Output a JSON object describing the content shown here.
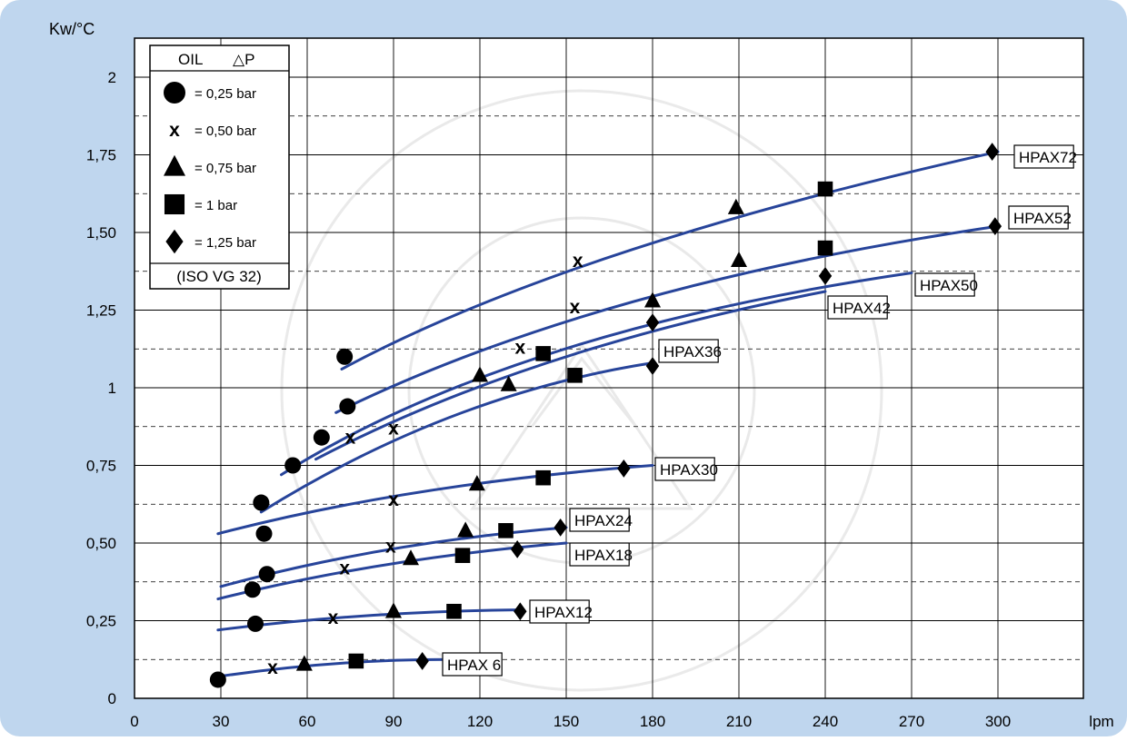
{
  "chart_data": {
    "type": "line",
    "ylabel": "Kw/°C",
    "xlabel": "lpm",
    "xlim": [
      0,
      320
    ],
    "ylim": [
      0,
      2.05
    ],
    "x_ticks": [
      0,
      30,
      60,
      90,
      120,
      150,
      180,
      210,
      240,
      270,
      300
    ],
    "y_ticks": [
      {
        "v": 0,
        "label": "0"
      },
      {
        "v": 0.25,
        "label": "0,25"
      },
      {
        "v": 0.5,
        "label": "0,50"
      },
      {
        "v": 0.75,
        "label": "0,75"
      },
      {
        "v": 1,
        "label": "1"
      },
      {
        "v": 1.25,
        "label": "1,25"
      },
      {
        "v": 1.5,
        "label": "1,50"
      },
      {
        "v": 1.75,
        "label": "1,75"
      },
      {
        "v": 2,
        "label": "2"
      }
    ],
    "grid": true,
    "legend": {
      "header_oil": "OIL",
      "header_dp": "△P",
      "items": [
        {
          "marker": "circle",
          "label": "= 0,25 bar"
        },
        {
          "marker": "x",
          "label": "= 0,50 bar"
        },
        {
          "marker": "triangle",
          "label": "= 0,75 bar"
        },
        {
          "marker": "square",
          "label": "= 1 bar"
        },
        {
          "marker": "diamond",
          "label": "= 1,25 bar"
        }
      ],
      "footer": "(ISO VG 32)",
      "placement": "top-left"
    },
    "series": [
      {
        "name": "HPAX72",
        "x": [
          73,
          154,
          209,
          240,
          298
        ],
        "y": [
          1.1,
          1.41,
          1.58,
          1.64,
          1.76
        ]
      },
      {
        "name": "HPAX52",
        "x": [
          74,
          153,
          210,
          240,
          299
        ],
        "y": [
          0.94,
          1.26,
          1.41,
          1.45,
          1.52
        ]
      },
      {
        "name": "HPAX50",
        "x": [
          55,
          75,
          134,
          180
        ],
        "y": [
          0.75,
          0.84,
          1.13,
          1.28
        ]
      },
      {
        "name": "HPAX42",
        "x": [
          65,
          90,
          120,
          142,
          180,
          240
        ],
        "y": [
          0.84,
          0.87,
          1.04,
          1.11,
          1.21,
          1.36
        ]
      },
      {
        "name": "HPAX36",
        "x": [
          44,
          130,
          153,
          180
        ],
        "y": [
          0.63,
          1.01,
          1.04,
          1.07
        ]
      },
      {
        "name": "HPAX30",
        "x": [
          45,
          90,
          119,
          142,
          170
        ],
        "y": [
          0.53,
          0.64,
          0.69,
          0.71,
          0.74
        ]
      },
      {
        "name": "HPAX24",
        "x": [
          46,
          89,
          115,
          129,
          148
        ],
        "y": [
          0.4,
          0.49,
          0.54,
          0.54,
          0.55
        ]
      },
      {
        "name": "HPAX18",
        "x": [
          41,
          73,
          96,
          114,
          133
        ],
        "y": [
          0.35,
          0.42,
          0.45,
          0.46,
          0.48
        ]
      },
      {
        "name": "HPAX12",
        "x": [
          42,
          69,
          90,
          111,
          134
        ],
        "y": [
          0.24,
          0.26,
          0.28,
          0.28,
          0.28
        ]
      },
      {
        "name": "HPAX 6",
        "x": [
          29,
          48,
          59,
          77,
          100
        ],
        "y": [
          0.06,
          0.1,
          0.11,
          0.12,
          0.12
        ]
      }
    ]
  },
  "colors": {
    "frame": "#bfd6ee",
    "curve": "#27449a",
    "grid": "#000000",
    "marker": "#000000"
  }
}
